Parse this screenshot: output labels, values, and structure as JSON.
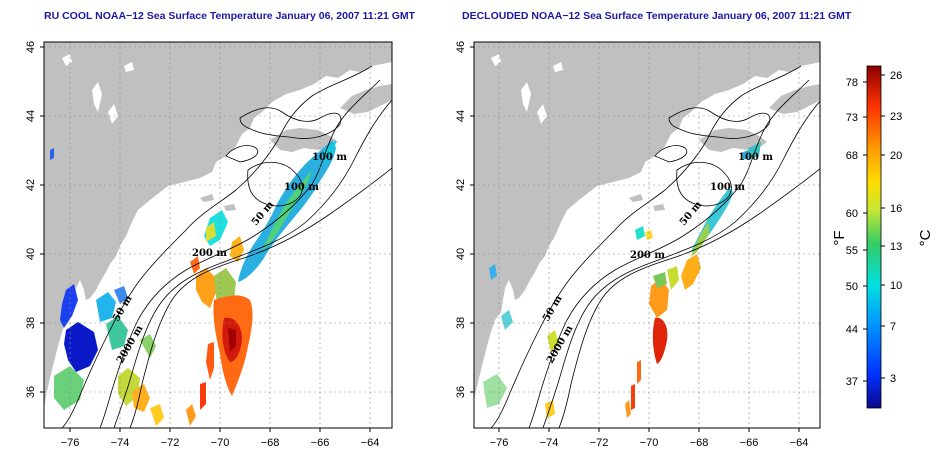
{
  "panels": [
    {
      "title": "RU COOL NOAA−12 Sea Surface Temperature January 06, 2007 11:21 GMT",
      "contour_labels": [
        "100 m",
        "100 m",
        "50 m",
        "200 m",
        "50 m",
        "2000 m"
      ]
    },
    {
      "title": "DECLOUDED NOAA−12 Sea Surface Temperature January 06, 2007 11:21 GMT",
      "contour_labels": [
        "100 m",
        "100 m",
        "50 m",
        "200 m",
        "50 m",
        "2000 m"
      ]
    }
  ],
  "axes": {
    "x_ticks": [
      "−76",
      "−74",
      "−72",
      "−70",
      "−68",
      "−66",
      "−64"
    ],
    "y_ticks": [
      "46",
      "44",
      "42",
      "40",
      "38",
      "36"
    ]
  },
  "colorbar": {
    "fahrenheit_ticks": [
      "78",
      "73",
      "68",
      "60",
      "55",
      "50",
      "44",
      "37"
    ],
    "celsius_ticks": [
      "26",
      "23",
      "20",
      "16",
      "13",
      "10",
      "7",
      "3"
    ],
    "fahrenheit_unit": "°F",
    "celsius_unit": "°C",
    "colors": [
      "#0a0a8c",
      "#0033ff",
      "#0099ff",
      "#00e0e0",
      "#33cc66",
      "#c8e632",
      "#ffdd00",
      "#ff9900",
      "#ff3300",
      "#8c0000"
    ]
  }
}
